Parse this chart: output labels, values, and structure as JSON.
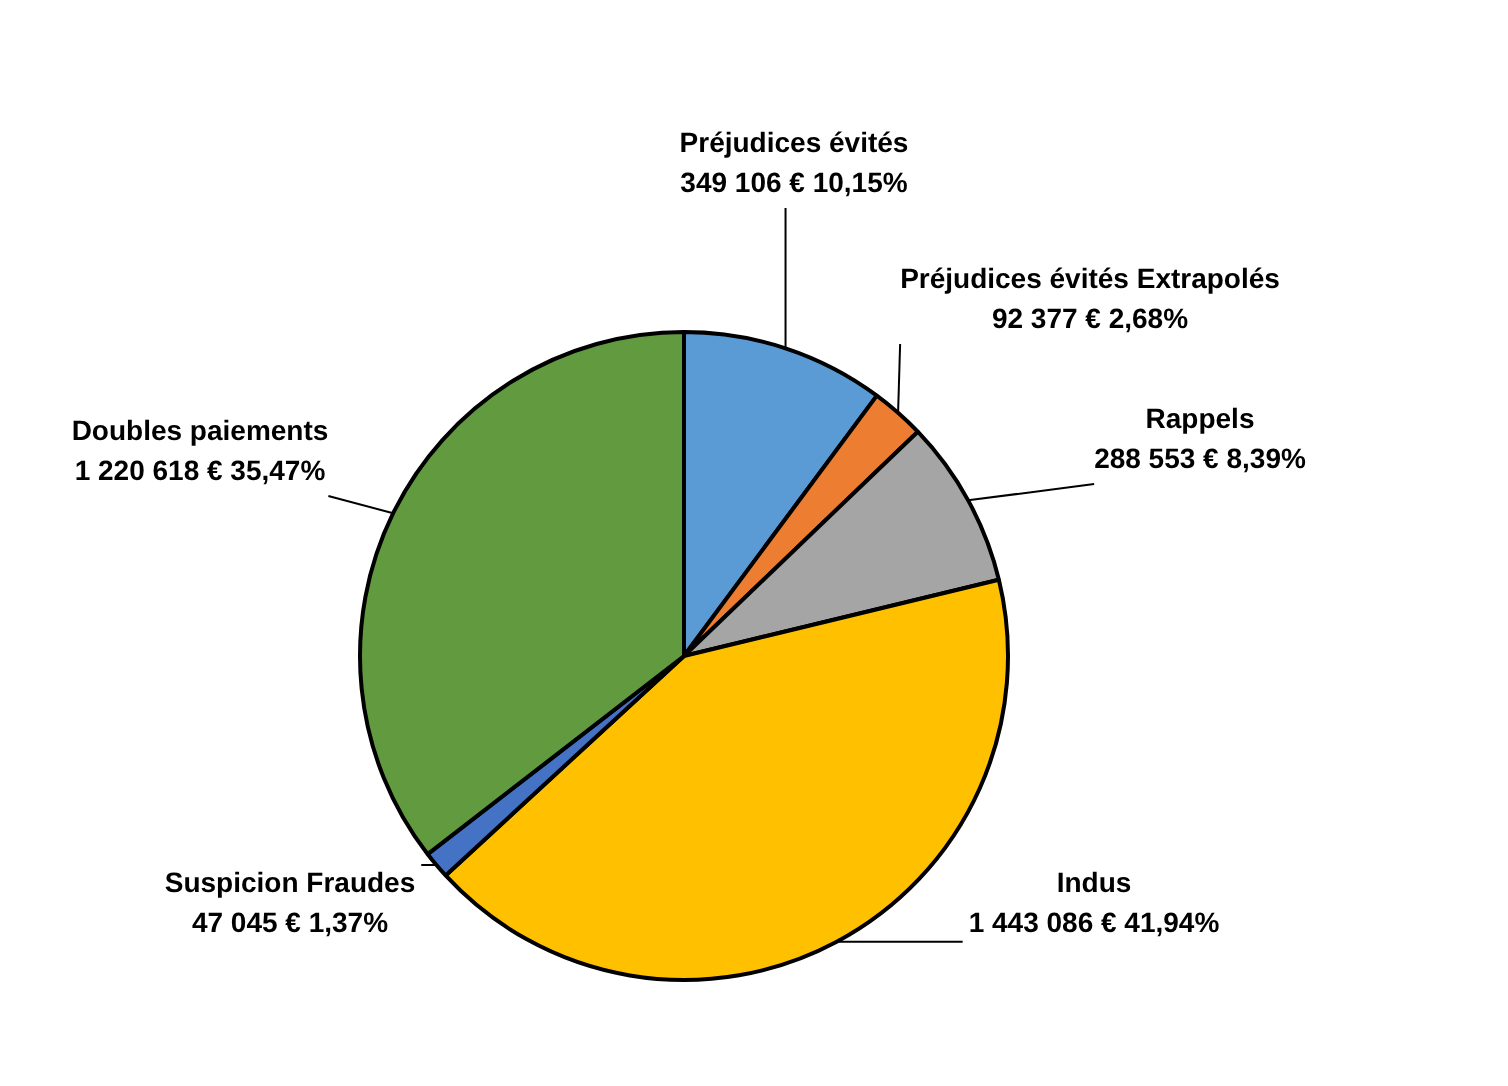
{
  "chart_data": {
    "type": "pie",
    "categories": [
      "Préjudices évités",
      "Préjudices évités Extrapolés",
      "Rappels",
      "Indus",
      "Suspicion Fraudes",
      "Doubles paiements"
    ],
    "values": [
      349106,
      92377,
      288553,
      1443086,
      47045,
      1220618
    ],
    "colors": [
      "#5b9bd5",
      "#ed7d31",
      "#a5a5a5",
      "#ffc000",
      "#4472c4",
      "#629a3f"
    ],
    "value_labels": [
      "349 106 € 10,15%",
      "92 377 € 2,68%",
      "288 553 € 8,39%",
      "1 443 086 € 41,94%",
      "47 045 € 1,37%",
      "1 220 618 € 35,47%"
    ],
    "legend": false
  }
}
